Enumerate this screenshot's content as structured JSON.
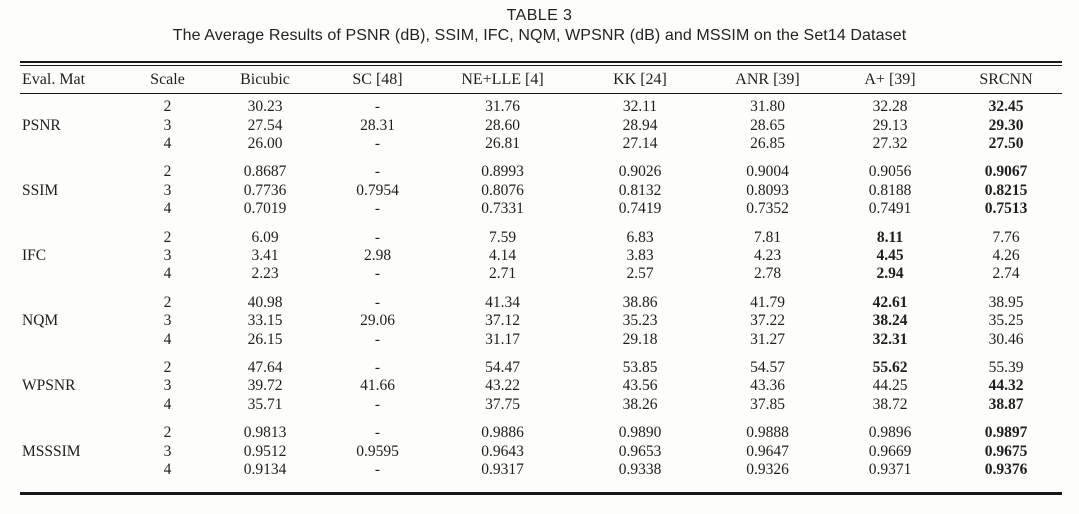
{
  "title": "TABLE 3",
  "caption": "The Average Results of PSNR (dB), SSIM, IFC, NQM, WPSNR (dB) and MSSIM on the Set14 Dataset",
  "table": {
    "columns": [
      "Eval. Mat",
      "Scale",
      "Bicubic",
      "SC [48]",
      "NE+LLE [4]",
      "KK [24]",
      "ANR [39]",
      "A+ [39]",
      "SRCNN"
    ],
    "groups": [
      {
        "metric": "PSNR",
        "rows": [
          {
            "scale": "2",
            "values": [
              "30.23",
              "-",
              "31.76",
              "32.11",
              "31.80",
              "32.28",
              "32.45"
            ],
            "bold": [
              6
            ]
          },
          {
            "scale": "3",
            "values": [
              "27.54",
              "28.31",
              "28.60",
              "28.94",
              "28.65",
              "29.13",
              "29.30"
            ],
            "bold": [
              6
            ]
          },
          {
            "scale": "4",
            "values": [
              "26.00",
              "-",
              "26.81",
              "27.14",
              "26.85",
              "27.32",
              "27.50"
            ],
            "bold": [
              6
            ]
          }
        ]
      },
      {
        "metric": "SSIM",
        "rows": [
          {
            "scale": "2",
            "values": [
              "0.8687",
              "-",
              "0.8993",
              "0.9026",
              "0.9004",
              "0.9056",
              "0.9067"
            ],
            "bold": [
              6
            ]
          },
          {
            "scale": "3",
            "values": [
              "0.7736",
              "0.7954",
              "0.8076",
              "0.8132",
              "0.8093",
              "0.8188",
              "0.8215"
            ],
            "bold": [
              6
            ]
          },
          {
            "scale": "4",
            "values": [
              "0.7019",
              "-",
              "0.7331",
              "0.7419",
              "0.7352",
              "0.7491",
              "0.7513"
            ],
            "bold": [
              6
            ]
          }
        ]
      },
      {
        "metric": "IFC",
        "rows": [
          {
            "scale": "2",
            "values": [
              "6.09",
              "-",
              "7.59",
              "6.83",
              "7.81",
              "8.11",
              "7.76"
            ],
            "bold": [
              5
            ]
          },
          {
            "scale": "3",
            "values": [
              "3.41",
              "2.98",
              "4.14",
              "3.83",
              "4.23",
              "4.45",
              "4.26"
            ],
            "bold": [
              5
            ]
          },
          {
            "scale": "4",
            "values": [
              "2.23",
              "-",
              "2.71",
              "2.57",
              "2.78",
              "2.94",
              "2.74"
            ],
            "bold": [
              5
            ]
          }
        ]
      },
      {
        "metric": "NQM",
        "rows": [
          {
            "scale": "2",
            "values": [
              "40.98",
              "-",
              "41.34",
              "38.86",
              "41.79",
              "42.61",
              "38.95"
            ],
            "bold": [
              5
            ]
          },
          {
            "scale": "3",
            "values": [
              "33.15",
              "29.06",
              "37.12",
              "35.23",
              "37.22",
              "38.24",
              "35.25"
            ],
            "bold": [
              5
            ]
          },
          {
            "scale": "4",
            "values": [
              "26.15",
              "-",
              "31.17",
              "29.18",
              "31.27",
              "32.31",
              "30.46"
            ],
            "bold": [
              5
            ]
          }
        ]
      },
      {
        "metric": "WPSNR",
        "rows": [
          {
            "scale": "2",
            "values": [
              "47.64",
              "-",
              "54.47",
              "53.85",
              "54.57",
              "55.62",
              "55.39"
            ],
            "bold": [
              5
            ]
          },
          {
            "scale": "3",
            "values": [
              "39.72",
              "41.66",
              "43.22",
              "43.56",
              "43.36",
              "44.25",
              "44.32"
            ],
            "bold": [
              6
            ]
          },
          {
            "scale": "4",
            "values": [
              "35.71",
              "-",
              "37.75",
              "38.26",
              "37.85",
              "38.72",
              "38.87"
            ],
            "bold": [
              6
            ]
          }
        ]
      },
      {
        "metric": "MSSSIM",
        "rows": [
          {
            "scale": "2",
            "values": [
              "0.9813",
              "-",
              "0.9886",
              "0.9890",
              "0.9888",
              "0.9896",
              "0.9897"
            ],
            "bold": [
              6
            ]
          },
          {
            "scale": "3",
            "values": [
              "0.9512",
              "0.9595",
              "0.9643",
              "0.9653",
              "0.9647",
              "0.9669",
              "0.9675"
            ],
            "bold": [
              6
            ]
          },
          {
            "scale": "4",
            "values": [
              "0.9134",
              "-",
              "0.9317",
              "0.9338",
              "0.9326",
              "0.9371",
              "0.9376"
            ],
            "bold": [
              6
            ]
          }
        ]
      }
    ]
  }
}
